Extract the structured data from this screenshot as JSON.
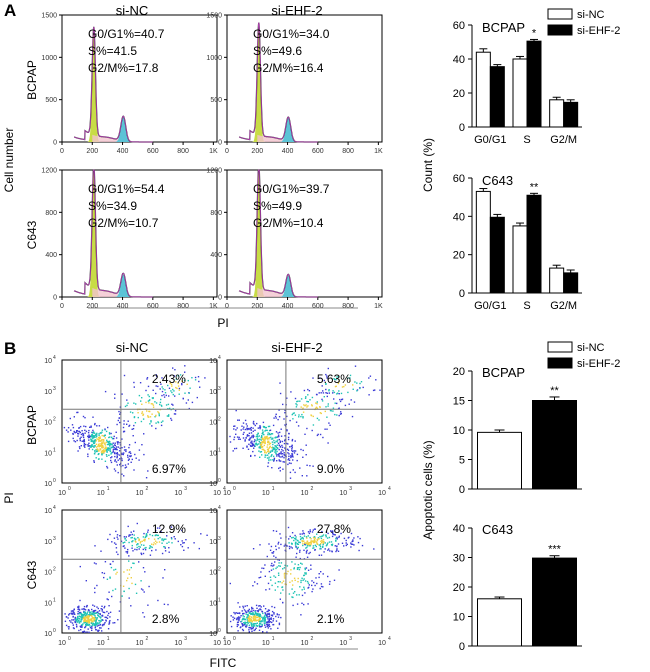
{
  "panel_labels": {
    "a": "A",
    "b": "B"
  },
  "section_a": {
    "column_titles": [
      "si-NC",
      "si-EHF-2"
    ],
    "row_labels": [
      "BCPAP",
      "C643"
    ],
    "y_axis_label": "Cell number",
    "x_axis_label": "PI",
    "y_ticks": [
      "0",
      "500",
      "1000",
      "1500"
    ],
    "x_ticks": [
      "0",
      "200",
      "400",
      "600",
      "800",
      "1K"
    ],
    "histograms": [
      {
        "row": 0,
        "col": 0,
        "ymax": 1500,
        "g1_peak": 1280,
        "g2_peak": 290,
        "lines": [
          "G0/G1%=40.7",
          "S%=41.5",
          "G2/M%=17.8"
        ]
      },
      {
        "row": 0,
        "col": 1,
        "ymax": 1500,
        "g1_peak": 1330,
        "g2_peak": 280,
        "lines": [
          "G0/G1%=34.0",
          "S%=49.6",
          "G2/M%=16.4"
        ]
      },
      {
        "row": 1,
        "col": 0,
        "ymax": 1200,
        "g1_peak": 1180,
        "g2_peak": 210,
        "lines": [
          "G0/G1%=54.4",
          "S%=34.9",
          "G2/M%=10.7"
        ]
      },
      {
        "row": 1,
        "col": 1,
        "ymax": 1200,
        "g1_peak": 1180,
        "g2_peak": 200,
        "lines": [
          "G0/G1%=39.7",
          "S%=49.9",
          "G2/M%=10.4"
        ]
      }
    ]
  },
  "section_b": {
    "column_titles": [
      "si-NC",
      "si-EHF-2"
    ],
    "row_labels": [
      "BCPAP",
      "C643"
    ],
    "y_axis_label": "PI",
    "x_axis_label": "FITC",
    "plots": [
      {
        "row": 0,
        "col": 0,
        "upper_right": "2.43%",
        "lower_right": "6.97%"
      },
      {
        "row": 0,
        "col": 1,
        "upper_right": "5.63%",
        "lower_right": "9.0%"
      },
      {
        "row": 1,
        "col": 0,
        "upper_right": "12.9%",
        "lower_right": "2.8%"
      },
      {
        "row": 1,
        "col": 1,
        "upper_right": "27.8%",
        "lower_right": "2.1%"
      }
    ]
  },
  "legend": {
    "items": [
      {
        "label": "si-NC",
        "color": "#ffffff"
      },
      {
        "label": "si-EHF-2",
        "color": "#000000"
      }
    ]
  },
  "colors": {
    "hist_line": "#2a2a2a",
    "g1_fill": "#c8dc46",
    "s_fill": "#f2c4ce",
    "g2_fill": "#5cc3d6",
    "peak_line": "#c040c0",
    "dot_low": "#3a3ad6",
    "dot_mid": "#1ec3b4",
    "dot_high": "#f0d040"
  },
  "chart_data": [
    {
      "type": "bar",
      "title": "BCPAP",
      "ylabel": "Count (%)",
      "categories": [
        "G0/G1",
        "S",
        "G2/M"
      ],
      "series": [
        {
          "name": "si-NC",
          "values": [
            44,
            40,
            16
          ],
          "errors": [
            2,
            1.5,
            1.5
          ]
        },
        {
          "name": "si-EHF-2",
          "values": [
            35.5,
            50.5,
            14.5
          ],
          "errors": [
            1.2,
            1,
            1.5
          ]
        }
      ],
      "ylim": [
        0,
        60
      ],
      "yticks": [
        "0",
        "20",
        "40",
        "60"
      ],
      "annotations": [
        {
          "category": "S",
          "text": "*"
        }
      ]
    },
    {
      "type": "bar",
      "title": "C643",
      "ylabel": "Count (%)",
      "categories": [
        "G0/G1",
        "S",
        "G2/M"
      ],
      "series": [
        {
          "name": "si-NC",
          "values": [
            53,
            35,
            13
          ],
          "errors": [
            1.5,
            1.5,
            1.5
          ]
        },
        {
          "name": "si-EHF-2",
          "values": [
            39.5,
            51,
            10.5
          ],
          "errors": [
            1.5,
            1,
            1.5
          ]
        }
      ],
      "ylim": [
        0,
        60
      ],
      "yticks": [
        "0",
        "20",
        "40",
        "60"
      ],
      "annotations": [
        {
          "category": "S",
          "text": "**"
        }
      ]
    },
    {
      "type": "bar",
      "title": "BCPAP",
      "ylabel": "Apoptotic cells (%)",
      "categories": [
        "si-NC",
        "si-EHF-2"
      ],
      "series": [
        {
          "name": "Apoptotic cells",
          "values": [
            9.6,
            15.0
          ],
          "errors": [
            0.4,
            0.6
          ]
        }
      ],
      "ylim": [
        0,
        20
      ],
      "yticks": [
        "0",
        "5",
        "10",
        "15",
        "20"
      ],
      "annotations": [
        {
          "category": "si-EHF-2",
          "text": "**"
        }
      ]
    },
    {
      "type": "bar",
      "title": "C643",
      "ylabel": "Apoptotic cells (%)",
      "categories": [
        "si-NC",
        "si-EHF-2"
      ],
      "series": [
        {
          "name": "Apoptotic cells",
          "values": [
            16,
            29.8
          ],
          "errors": [
            0.6,
            0.8
          ]
        }
      ],
      "ylim": [
        0,
        40
      ],
      "yticks": [
        "0",
        "10",
        "20",
        "30",
        "40"
      ],
      "annotations": [
        {
          "category": "si-EHF-2",
          "text": "***"
        }
      ]
    }
  ]
}
